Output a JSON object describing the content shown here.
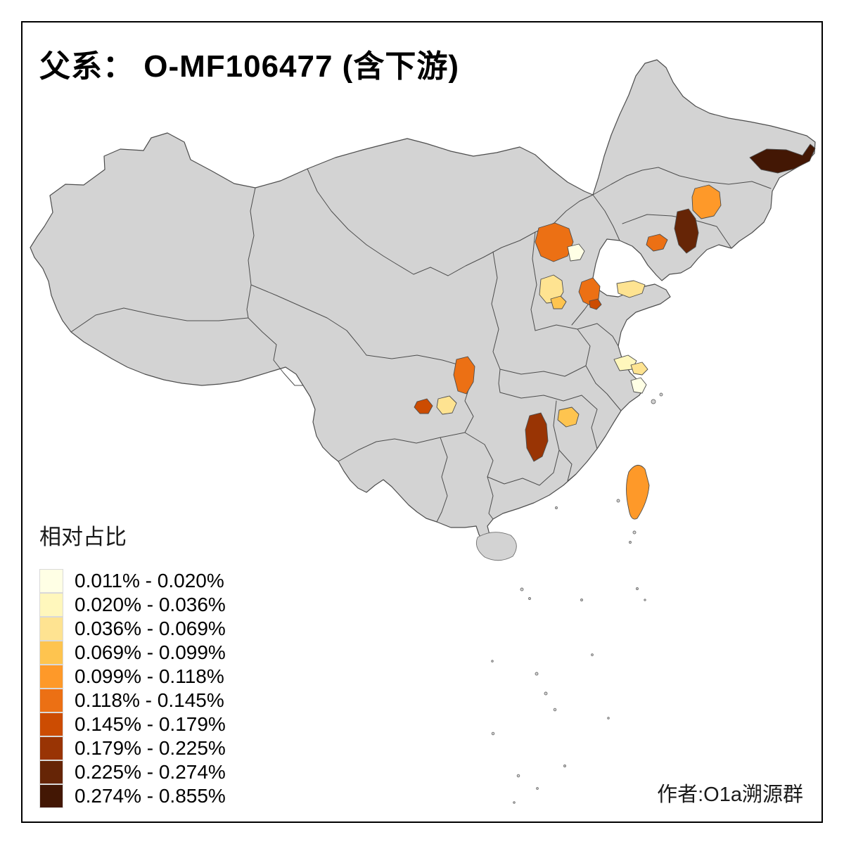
{
  "title": "父系： O-MF106477 (含下游)",
  "legend": {
    "title": "相对占比",
    "classes": [
      {
        "range": "0.011% - 0.020%",
        "color": "#FFFFE5"
      },
      {
        "range": "0.020% - 0.036%",
        "color": "#FFF7BC"
      },
      {
        "range": "0.036% - 0.069%",
        "color": "#FEE391"
      },
      {
        "range": "0.069% - 0.099%",
        "color": "#FEC44F"
      },
      {
        "range": "0.099% - 0.118%",
        "color": "#FE9929"
      },
      {
        "range": "0.118% - 0.145%",
        "color": "#EC7014"
      },
      {
        "range": "0.145% - 0.179%",
        "color": "#CC4C02"
      },
      {
        "range": "0.179% - 0.225%",
        "color": "#993404"
      },
      {
        "range": "0.225% - 0.274%",
        "color": "#662506"
      },
      {
        "range": "0.274% - 0.855%",
        "color": "#431704"
      }
    ]
  },
  "credit": "作者:O1a溯源群",
  "map": {
    "base_fill": "#D3D3D3",
    "border_color": "#4D4D4D",
    "island_stroke": "#707070",
    "frame_color": "#000000",
    "background": "#FFFFFF",
    "regions": [
      {
        "id": "heilongjiang-northeast",
        "class_index": 9
      },
      {
        "id": "jilin-central",
        "class_index": 4
      },
      {
        "id": "liaoning-east",
        "class_index": 8
      },
      {
        "id": "liaoning-coast",
        "class_index": 5
      },
      {
        "id": "beijing-area",
        "class_index": 5
      },
      {
        "id": "beijing-east-small",
        "class_index": 0
      },
      {
        "id": "tianjin-hebei",
        "class_index": 2
      },
      {
        "id": "hebei-south-small",
        "class_index": 3
      },
      {
        "id": "shandong-west",
        "class_index": 5
      },
      {
        "id": "shandong-small-red",
        "class_index": 6
      },
      {
        "id": "shandong-peninsula",
        "class_index": 2
      },
      {
        "id": "sichuan-east",
        "class_index": 5
      },
      {
        "id": "chongqing-west",
        "class_index": 6
      },
      {
        "id": "chongqing-pale",
        "class_index": 2
      },
      {
        "id": "hunan-east",
        "class_index": 7
      },
      {
        "id": "jiangxi-north",
        "class_index": 3
      },
      {
        "id": "jiangsu-a",
        "class_index": 1
      },
      {
        "id": "jiangsu-b",
        "class_index": 2
      },
      {
        "id": "shanghai-area",
        "class_index": 0
      },
      {
        "id": "taiwan",
        "class_index": 4
      }
    ]
  }
}
